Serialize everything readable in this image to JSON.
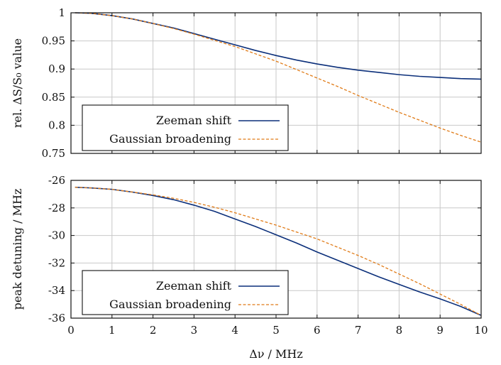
{
  "chart_data": [
    {
      "type": "line",
      "ylabel": "rel. ΔS/S₀ value",
      "xlim": [
        0,
        10
      ],
      "ylim": [
        0.75,
        1.0
      ],
      "x_ticks": [
        0,
        1,
        2,
        3,
        4,
        5,
        6,
        7,
        8,
        9,
        10
      ],
      "y_ticks": [
        0.75,
        0.8,
        0.85,
        0.9,
        0.95,
        1.0
      ],
      "y_tick_labels": [
        "0.75",
        "0.8",
        "0.85",
        "0.9",
        "0.95",
        "1"
      ],
      "grid": true,
      "legend_position": "bottom-left",
      "series": [
        {
          "name": "Zeeman shift",
          "color": "#0b2f7a",
          "style": "solid",
          "x": [
            0.1,
            0.5,
            1,
            1.5,
            2,
            2.5,
            3,
            3.5,
            4,
            4.5,
            5,
            5.5,
            6,
            6.5,
            7,
            7.5,
            8,
            8.5,
            9,
            9.5,
            10
          ],
          "y": [
            1.0,
            0.999,
            0.995,
            0.989,
            0.981,
            0.973,
            0.963,
            0.953,
            0.943,
            0.933,
            0.924,
            0.916,
            0.909,
            0.903,
            0.898,
            0.894,
            0.89,
            0.887,
            0.885,
            0.883,
            0.882
          ]
        },
        {
          "name": "Gaussian broadening",
          "color": "#e07b17",
          "style": "dashed",
          "x": [
            0.1,
            0.5,
            1,
            1.5,
            2,
            2.5,
            3,
            3.5,
            4,
            4.5,
            5,
            5.5,
            6,
            6.5,
            7,
            7.5,
            8,
            8.5,
            9,
            9.5,
            10
          ],
          "y": [
            1.0,
            0.999,
            0.995,
            0.989,
            0.981,
            0.972,
            0.962,
            0.951,
            0.94,
            0.927,
            0.914,
            0.899,
            0.884,
            0.869,
            0.853,
            0.838,
            0.823,
            0.809,
            0.795,
            0.782,
            0.77
          ]
        }
      ]
    },
    {
      "type": "line",
      "xlabel": "Δν / MHz",
      "ylabel": "peak detuning / MHz",
      "xlim": [
        0,
        10
      ],
      "ylim": [
        -36,
        -26
      ],
      "x_ticks": [
        0,
        1,
        2,
        3,
        4,
        5,
        6,
        7,
        8,
        9,
        10
      ],
      "x_tick_labels": [
        "0",
        "1",
        "2",
        "3",
        "4",
        "5",
        "6",
        "7",
        "8",
        "9",
        "10"
      ],
      "y_ticks": [
        -36,
        -34,
        -32,
        -30,
        -28,
        -26
      ],
      "y_tick_labels": [
        "-36",
        "-34",
        "-32",
        "-30",
        "-28",
        "-26"
      ],
      "grid": true,
      "legend_position": "bottom-left",
      "series": [
        {
          "name": "Zeeman shift",
          "color": "#0b2f7a",
          "style": "solid",
          "x": [
            0.1,
            0.5,
            1,
            1.5,
            2,
            2.5,
            3,
            3.5,
            4,
            4.5,
            5,
            5.5,
            6,
            6.5,
            7,
            7.5,
            8,
            8.5,
            9,
            9.5,
            10
          ],
          "y": [
            -26.5,
            -26.55,
            -26.65,
            -26.85,
            -27.1,
            -27.4,
            -27.8,
            -28.25,
            -28.8,
            -29.35,
            -29.95,
            -30.55,
            -31.2,
            -31.8,
            -32.4,
            -33.0,
            -33.55,
            -34.1,
            -34.6,
            -35.15,
            -35.8
          ]
        },
        {
          "name": "Gaussian broadening",
          "color": "#e07b17",
          "style": "dashed",
          "x": [
            0.1,
            0.5,
            1,
            1.5,
            2,
            2.5,
            3,
            3.5,
            4,
            4.5,
            5,
            5.5,
            6,
            6.5,
            7,
            7.5,
            8,
            8.5,
            9,
            9.5,
            10
          ],
          "y": [
            -26.5,
            -26.55,
            -26.65,
            -26.85,
            -27.05,
            -27.3,
            -27.6,
            -27.95,
            -28.35,
            -28.8,
            -29.25,
            -29.75,
            -30.25,
            -30.85,
            -31.45,
            -32.1,
            -32.8,
            -33.5,
            -34.25,
            -35.0,
            -35.8
          ]
        }
      ]
    }
  ]
}
